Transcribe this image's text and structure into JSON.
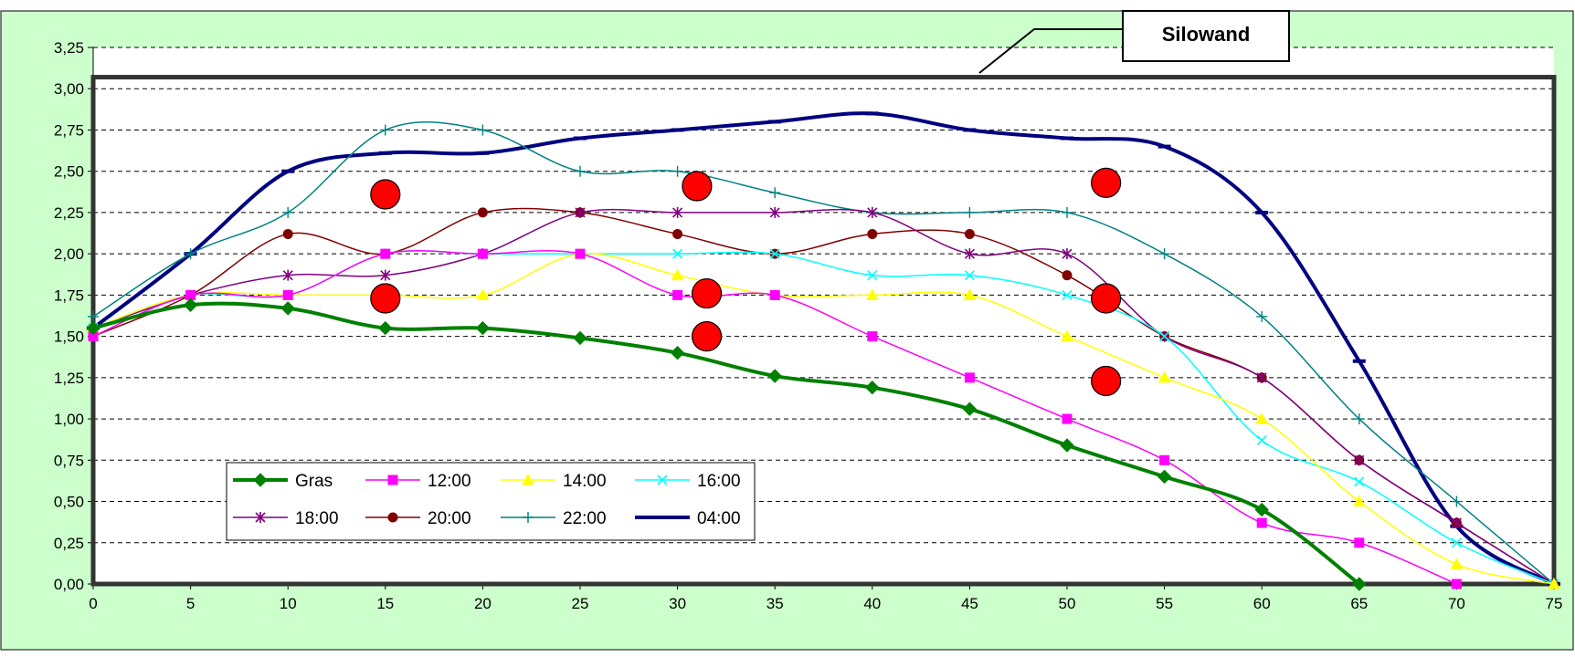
{
  "chart_data": {
    "type": "line",
    "callout": "Silowand",
    "xlim": [
      0,
      75
    ],
    "ylim": [
      0,
      3.25
    ],
    "x_ticks": [
      "0",
      "5",
      "10",
      "15",
      "20",
      "25",
      "30",
      "35",
      "40",
      "45",
      "50",
      "55",
      "60",
      "65",
      "70",
      "75"
    ],
    "y_ticks": [
      "0,00",
      "0,25",
      "0,50",
      "0,75",
      "1,00",
      "1,25",
      "1,50",
      "1,75",
      "2,00",
      "2,25",
      "2,50",
      "2,75",
      "3,00",
      "3,25"
    ],
    "grid": "horizontal dashed",
    "legend_position": "bottom-left inside plot",
    "series": [
      {
        "name": "Gras",
        "color": "#008000",
        "marker": "diamond",
        "width": 4,
        "points": [
          [
            0,
            1.55
          ],
          [
            5,
            1.69
          ],
          [
            10,
            1.67
          ],
          [
            15,
            1.55
          ],
          [
            20,
            1.55
          ],
          [
            25,
            1.49
          ],
          [
            30,
            1.4
          ],
          [
            35,
            1.26
          ],
          [
            40,
            1.19
          ],
          [
            45,
            1.06
          ],
          [
            50,
            0.84
          ],
          [
            55,
            0.65
          ],
          [
            60,
            0.45
          ],
          [
            65,
            0.0
          ]
        ]
      },
      {
        "name": "12:00",
        "color": "#ff00ff",
        "marker": "square",
        "width": 1.5,
        "points": [
          [
            0,
            1.5
          ],
          [
            5,
            1.75
          ],
          [
            10,
            1.75
          ],
          [
            15,
            2.0
          ],
          [
            20,
            2.0
          ],
          [
            25,
            2.0
          ],
          [
            30,
            1.75
          ],
          [
            35,
            1.75
          ],
          [
            40,
            1.5
          ],
          [
            45,
            1.25
          ],
          [
            50,
            1.0
          ],
          [
            55,
            0.75
          ],
          [
            60,
            0.37
          ],
          [
            65,
            0.25
          ],
          [
            70,
            0.0
          ]
        ]
      },
      {
        "name": "14:00",
        "color": "#ffff00",
        "marker": "triangle",
        "width": 1.5,
        "points": [
          [
            0,
            1.55
          ],
          [
            5,
            1.75
          ],
          [
            10,
            1.75
          ],
          [
            15,
            1.75
          ],
          [
            20,
            1.75
          ],
          [
            25,
            2.0
          ],
          [
            30,
            1.87
          ],
          [
            35,
            1.75
          ],
          [
            40,
            1.75
          ],
          [
            45,
            1.75
          ],
          [
            50,
            1.5
          ],
          [
            55,
            1.25
          ],
          [
            60,
            1.0
          ],
          [
            65,
            0.5
          ],
          [
            70,
            0.12
          ],
          [
            75,
            0.0
          ]
        ]
      },
      {
        "name": "16:00",
        "color": "#00ffff",
        "marker": "x",
        "width": 1.5,
        "points": [
          [
            0,
            1.55
          ],
          [
            5,
            1.75
          ],
          [
            10,
            1.75
          ],
          [
            15,
            2.0
          ],
          [
            20,
            2.0
          ],
          [
            25,
            2.0
          ],
          [
            30,
            2.0
          ],
          [
            35,
            2.0
          ],
          [
            40,
            1.87
          ],
          [
            45,
            1.87
          ],
          [
            50,
            1.75
          ],
          [
            55,
            1.5
          ],
          [
            60,
            0.87
          ],
          [
            65,
            0.62
          ],
          [
            70,
            0.25
          ],
          [
            75,
            0.0
          ]
        ]
      },
      {
        "name": "18:00",
        "color": "#800080",
        "marker": "star",
        "width": 1.5,
        "points": [
          [
            0,
            1.55
          ],
          [
            5,
            1.75
          ],
          [
            10,
            1.87
          ],
          [
            15,
            1.87
          ],
          [
            20,
            2.0
          ],
          [
            25,
            2.25
          ],
          [
            30,
            2.25
          ],
          [
            35,
            2.25
          ],
          [
            40,
            2.25
          ],
          [
            45,
            2.0
          ],
          [
            50,
            2.0
          ],
          [
            55,
            1.5
          ],
          [
            60,
            1.25
          ],
          [
            65,
            0.75
          ],
          [
            70,
            0.37
          ],
          [
            75,
            0.0
          ]
        ]
      },
      {
        "name": "20:00",
        "color": "#800000",
        "marker": "circle",
        "width": 1.5,
        "points": [
          [
            0,
            1.5
          ],
          [
            5,
            1.75
          ],
          [
            10,
            2.12
          ],
          [
            15,
            2.0
          ],
          [
            20,
            2.25
          ],
          [
            25,
            2.25
          ],
          [
            30,
            2.12
          ],
          [
            35,
            2.0
          ],
          [
            40,
            2.12
          ],
          [
            45,
            2.12
          ],
          [
            50,
            1.87
          ],
          [
            55,
            1.5
          ],
          [
            60,
            1.25
          ],
          [
            65,
            0.75
          ],
          [
            70,
            0.37
          ],
          [
            75,
            0.0
          ]
        ]
      },
      {
        "name": "22:00",
        "color": "#008080",
        "marker": "plus",
        "width": 1.5,
        "points": [
          [
            0,
            1.62
          ],
          [
            5,
            2.0
          ],
          [
            10,
            2.25
          ],
          [
            15,
            2.75
          ],
          [
            20,
            2.75
          ],
          [
            25,
            2.5
          ],
          [
            30,
            2.5
          ],
          [
            35,
            2.37
          ],
          [
            40,
            2.25
          ],
          [
            45,
            2.25
          ],
          [
            50,
            2.25
          ],
          [
            55,
            2.0
          ],
          [
            60,
            1.62
          ],
          [
            65,
            1.0
          ],
          [
            70,
            0.5
          ],
          [
            75,
            0.0
          ]
        ]
      },
      {
        "name": "04:00",
        "color": "#000080",
        "marker": "dash",
        "width": 4,
        "points": [
          [
            0,
            1.55
          ],
          [
            5,
            2.0
          ],
          [
            10,
            2.5
          ],
          [
            15,
            2.61
          ],
          [
            20,
            2.61
          ],
          [
            25,
            2.7
          ],
          [
            30,
            2.75
          ],
          [
            35,
            2.8
          ],
          [
            40,
            2.85
          ],
          [
            45,
            2.75
          ],
          [
            50,
            2.7
          ],
          [
            55,
            2.65
          ],
          [
            60,
            2.25
          ],
          [
            65,
            1.35
          ],
          [
            70,
            0.35
          ],
          [
            75,
            0.0
          ]
        ]
      }
    ],
    "red_markers": [
      [
        15,
        2.36
      ],
      [
        31,
        2.41
      ],
      [
        52,
        2.43
      ],
      [
        15,
        1.73
      ],
      [
        31.5,
        1.76
      ],
      [
        52,
        1.73
      ],
      [
        31.5,
        1.5
      ],
      [
        52,
        1.23
      ]
    ],
    "colors": {
      "background": "#ccffcc",
      "plot_background": "#ffffff",
      "silo_frame": "#333333",
      "red_marker": "#ff0000"
    }
  }
}
